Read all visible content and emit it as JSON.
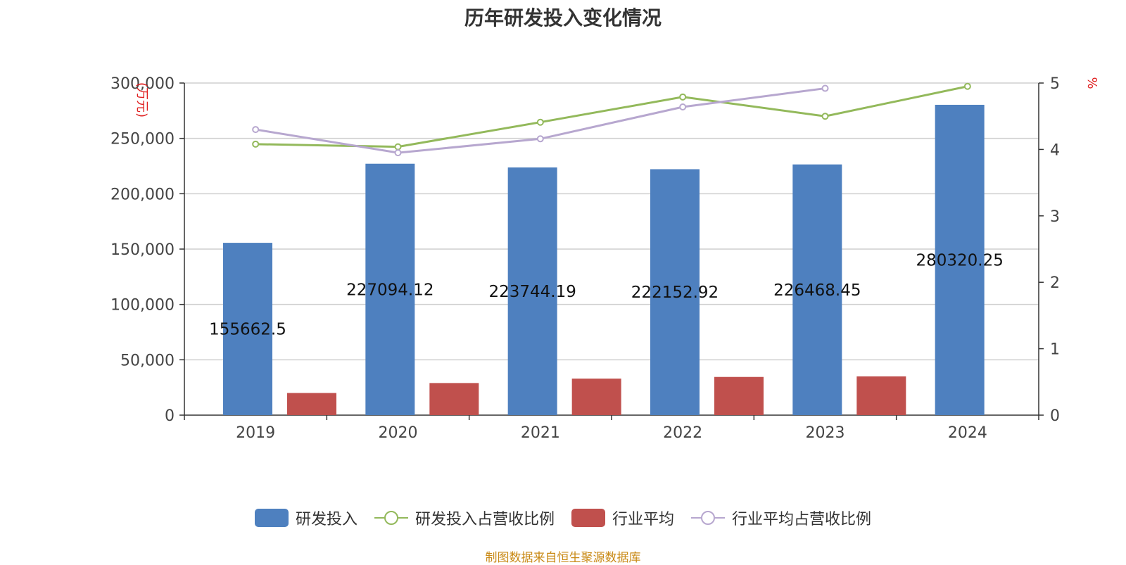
{
  "chart_data": {
    "type": "bar",
    "title": "历年研发投入变化情况",
    "categories": [
      "2019",
      "2020",
      "2021",
      "2022",
      "2023",
      "2024"
    ],
    "left_axis": {
      "label": "(万元)",
      "ylim": [
        0,
        300000
      ],
      "ticks": [
        "0",
        "50,000",
        "100,000",
        "150,000",
        "200,000",
        "250,000",
        "300,000"
      ]
    },
    "right_axis": {
      "label": "%",
      "ylim": [
        0,
        5
      ],
      "ticks": [
        "0",
        "1",
        "2",
        "3",
        "4",
        "5"
      ]
    },
    "series": [
      {
        "name": "研发投入",
        "kind": "bar",
        "axis": "left",
        "color": "#4e80bf",
        "values": [
          155662.5,
          227094.12,
          223744.19,
          222152.92,
          226468.45,
          280320.25
        ],
        "labels": [
          "155662.5",
          "227094.12",
          "223744.19",
          "222152.92",
          "226468.45",
          "280320.25"
        ]
      },
      {
        "name": "研发投入占营收比例",
        "kind": "line",
        "axis": "right",
        "color": "#93b95b",
        "values": [
          4.08,
          4.04,
          4.41,
          4.79,
          4.5,
          4.95
        ]
      },
      {
        "name": "行业平均",
        "kind": "bar",
        "axis": "left",
        "color": "#c0504d",
        "values": [
          20000,
          29000,
          33000,
          34500,
          35000,
          null
        ]
      },
      {
        "name": "行业平均占营收比例",
        "kind": "line",
        "axis": "right",
        "color": "#b7a7cf",
        "values": [
          4.3,
          3.95,
          4.16,
          4.64,
          4.92,
          null
        ]
      }
    ],
    "grid": true,
    "legend_position": "bottom"
  },
  "source": "制图数据来自恒生聚源数据库"
}
